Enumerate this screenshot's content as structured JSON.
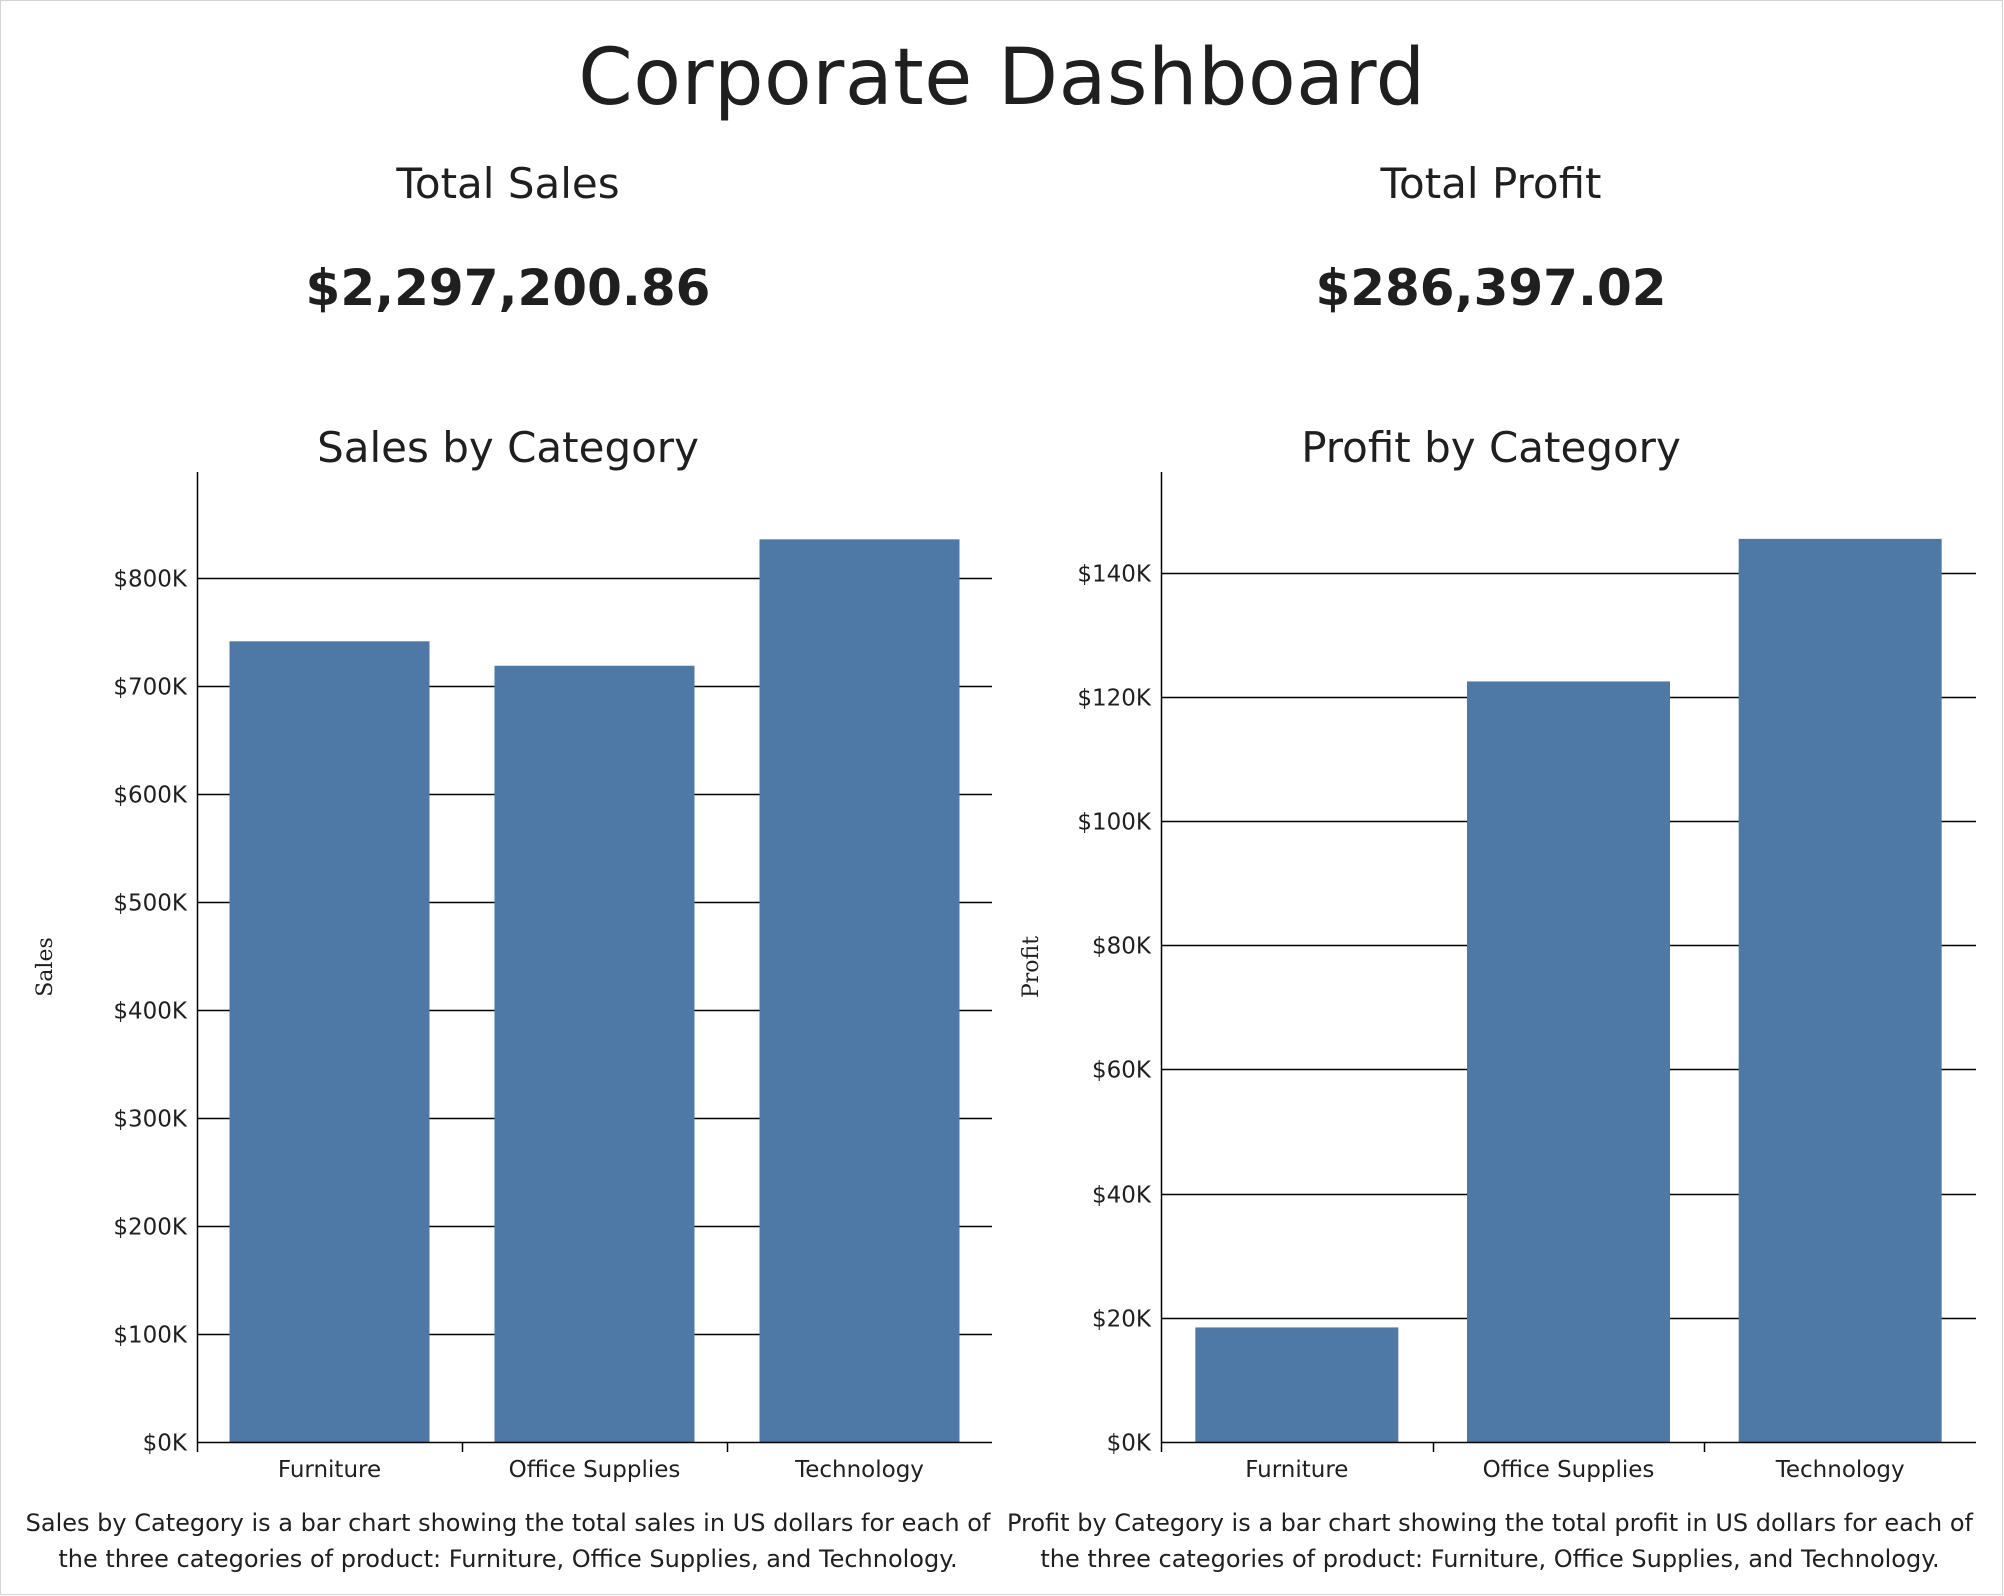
{
  "dashboard": {
    "title": "Corporate Dashboard"
  },
  "kpis": {
    "sales": {
      "label": "Total Sales",
      "value": "$2,297,200.86"
    },
    "profit": {
      "label": "Total Profit",
      "value": "$286,397.02"
    }
  },
  "colors": {
    "bar": "#4e79a7",
    "grid": "#000000",
    "axis": "#000000"
  },
  "chart_data": [
    {
      "id": "sales",
      "type": "bar",
      "title": "Sales by Category",
      "xlabel": "",
      "ylabel": "Sales",
      "categories": [
        "Furniture",
        "Office Supplies",
        "Technology"
      ],
      "values": [
        741718,
        719047,
        836154
      ],
      "ylim": [
        0,
        880000
      ],
      "yticks": [
        0,
        100000,
        200000,
        300000,
        400000,
        500000,
        600000,
        700000,
        800000
      ],
      "ytick_labels": [
        "$0K",
        "$100K",
        "$200K",
        "$300K",
        "$400K",
        "$500K",
        "$600K",
        "$700K",
        "$800K"
      ],
      "grid": true,
      "caption": "Sales by Category is a bar chart showing the total sales in US dollars for each of the three categories of product: Furniture, Office Supplies, and Technology."
    },
    {
      "id": "profit",
      "type": "bar",
      "title": "Profit by Category",
      "xlabel": "",
      "ylabel": "Profit",
      "categories": [
        "Furniture",
        "Office Supplies",
        "Technology"
      ],
      "values": [
        18451,
        122491,
        145455
      ],
      "ylim": [
        0,
        153000
      ],
      "yticks": [
        0,
        20000,
        40000,
        60000,
        80000,
        100000,
        120000,
        140000
      ],
      "ytick_labels": [
        "$0K",
        "$20K",
        "$40K",
        "$60K",
        "$80K",
        "$100K",
        "$120K",
        "$140K"
      ],
      "grid": true,
      "caption": "Profit by Category is a bar chart showing the total profit in US dollars for each of the three categories of product: Furniture, Office Supplies, and Technology."
    }
  ]
}
